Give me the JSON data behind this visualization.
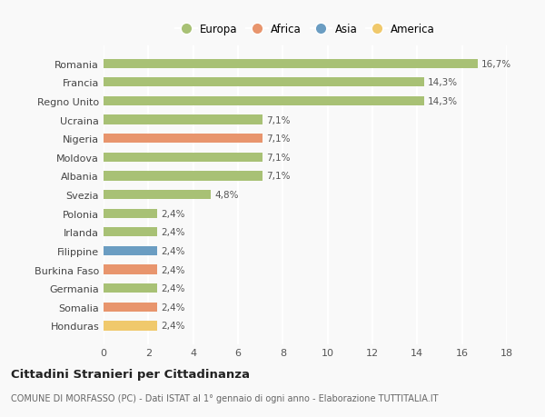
{
  "categories": [
    "Honduras",
    "Somalia",
    "Germania",
    "Burkina Faso",
    "Filippine",
    "Irlanda",
    "Polonia",
    "Svezia",
    "Albania",
    "Moldova",
    "Nigeria",
    "Ucraina",
    "Regno Unito",
    "Francia",
    "Romania"
  ],
  "values": [
    2.4,
    2.4,
    2.4,
    2.4,
    2.4,
    2.4,
    2.4,
    4.8,
    7.1,
    7.1,
    7.1,
    7.1,
    14.3,
    14.3,
    16.7
  ],
  "percentages": [
    "2,4%",
    "2,4%",
    "2,4%",
    "2,4%",
    "2,4%",
    "2,4%",
    "2,4%",
    "4,8%",
    "7,1%",
    "7,1%",
    "7,1%",
    "7,1%",
    "14,3%",
    "14,3%",
    "16,7%"
  ],
  "colors": [
    "#f0c96c",
    "#e8956d",
    "#a8c175",
    "#e8956d",
    "#6b9dc2",
    "#a8c175",
    "#a8c175",
    "#a8c175",
    "#a8c175",
    "#a8c175",
    "#e8956d",
    "#a8c175",
    "#a8c175",
    "#a8c175",
    "#a8c175"
  ],
  "legend_labels": [
    "Europa",
    "Africa",
    "Asia",
    "America"
  ],
  "legend_colors": [
    "#a8c175",
    "#e8956d",
    "#6b9dc2",
    "#f0c96c"
  ],
  "xlim": [
    0,
    18
  ],
  "xticks": [
    0,
    2,
    4,
    6,
    8,
    10,
    12,
    14,
    16,
    18
  ],
  "title": "Cittadini Stranieri per Cittadinanza",
  "subtitle": "COMUNE DI MORFASSO (PC) - Dati ISTAT al 1° gennaio di ogni anno - Elaborazione TUTTITALIA.IT",
  "background_color": "#f9f9f9",
  "grid_color": "#ffffff",
  "bar_height": 0.5
}
